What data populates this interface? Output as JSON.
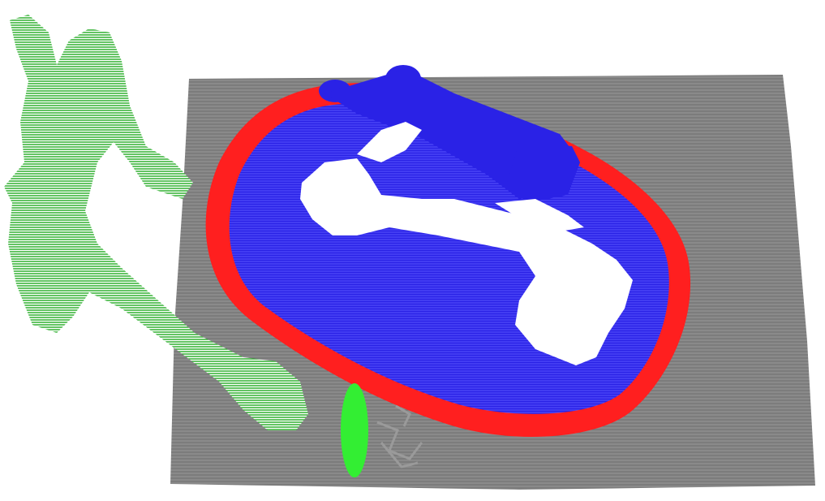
{
  "scene": {
    "kind": "point-cloud-segmentation",
    "background_color": "#ffffff",
    "ground_plane": {
      "color": "#8a8a8a",
      "hatch_color": "#6e6e6e"
    },
    "safety_margin_zone": {
      "color": "#ff1f1f"
    },
    "workspace_zone": {
      "color": "#2a22e6",
      "hatch_color": "#5a55ff"
    },
    "robot_arm": {
      "color": "#2a22e6"
    },
    "unoccupied_regions": {
      "color": "#ffffff"
    },
    "human_point_cloud": {
      "color": "#22aa22",
      "hatch_color": "#55cc55"
    },
    "small_object": {
      "color": "#33ee33"
    },
    "gray_debris": {
      "color": "#9a9a9a"
    }
  }
}
